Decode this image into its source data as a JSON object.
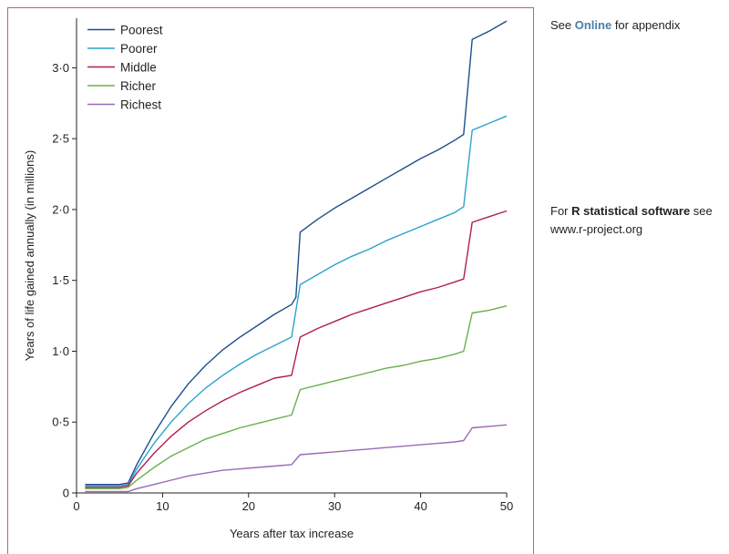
{
  "side_notes": {
    "appendix": {
      "prefix": "See ",
      "link": "Online",
      "suffix": " for appendix"
    },
    "software": {
      "prefix": "For ",
      "bold": "R statistical software",
      "suffix": " see",
      "line2": "www.r-project.org"
    }
  },
  "chart_data": {
    "type": "line",
    "title": "",
    "xlabel": "Years after tax increase",
    "ylabel": "Years of life gained annually (in millions)",
    "xlim": [
      0,
      50
    ],
    "ylim": [
      0,
      3.35
    ],
    "xticks": [
      0,
      10,
      20,
      30,
      40,
      50
    ],
    "xtick_labels": [
      "0",
      "10",
      "20",
      "30",
      "40",
      "50"
    ],
    "yticks": [
      0,
      0.5,
      1.0,
      1.5,
      2.0,
      2.5,
      3.0
    ],
    "ytick_labels": [
      "0",
      "0·5",
      "1·0",
      "1·5",
      "2·0",
      "2·5",
      "3·0"
    ],
    "grid": false,
    "legend_position": "top-left",
    "series": [
      {
        "name": "Poorest",
        "color": "#1d4f8a",
        "points": [
          [
            1,
            0.06
          ],
          [
            5,
            0.06
          ],
          [
            6,
            0.07
          ],
          [
            7,
            0.2
          ],
          [
            9,
            0.42
          ],
          [
            11,
            0.61
          ],
          [
            13,
            0.77
          ],
          [
            15,
            0.9
          ],
          [
            17,
            1.01
          ],
          [
            19,
            1.1
          ],
          [
            21,
            1.18
          ],
          [
            23,
            1.26
          ],
          [
            25,
            1.33
          ],
          [
            25.5,
            1.38
          ],
          [
            26,
            1.84
          ],
          [
            28,
            1.93
          ],
          [
            30,
            2.01
          ],
          [
            32,
            2.08
          ],
          [
            34,
            2.15
          ],
          [
            36,
            2.22
          ],
          [
            38,
            2.29
          ],
          [
            40,
            2.36
          ],
          [
            42,
            2.42
          ],
          [
            44,
            2.49
          ],
          [
            45,
            2.53
          ],
          [
            46,
            3.2
          ],
          [
            48,
            3.26
          ],
          [
            50,
            3.33
          ]
        ]
      },
      {
        "name": "Poorer",
        "color": "#2ba3cc",
        "points": [
          [
            1,
            0.05
          ],
          [
            5,
            0.05
          ],
          [
            6,
            0.06
          ],
          [
            7,
            0.17
          ],
          [
            9,
            0.35
          ],
          [
            11,
            0.5
          ],
          [
            13,
            0.63
          ],
          [
            15,
            0.74
          ],
          [
            17,
            0.83
          ],
          [
            19,
            0.91
          ],
          [
            21,
            0.98
          ],
          [
            23,
            1.04
          ],
          [
            25,
            1.1
          ],
          [
            26,
            1.47
          ],
          [
            28,
            1.54
          ],
          [
            30,
            1.61
          ],
          [
            32,
            1.67
          ],
          [
            34,
            1.72
          ],
          [
            36,
            1.78
          ],
          [
            38,
            1.83
          ],
          [
            40,
            1.88
          ],
          [
            42,
            1.93
          ],
          [
            44,
            1.98
          ],
          [
            45,
            2.02
          ],
          [
            46,
            2.56
          ],
          [
            48,
            2.61
          ],
          [
            50,
            2.66
          ]
        ]
      },
      {
        "name": "Middle",
        "color": "#b01e4e",
        "points": [
          [
            1,
            0.04
          ],
          [
            5,
            0.04
          ],
          [
            6,
            0.05
          ],
          [
            7,
            0.14
          ],
          [
            9,
            0.28
          ],
          [
            11,
            0.4
          ],
          [
            13,
            0.5
          ],
          [
            15,
            0.58
          ],
          [
            17,
            0.65
          ],
          [
            19,
            0.71
          ],
          [
            21,
            0.76
          ],
          [
            23,
            0.81
          ],
          [
            25,
            0.83
          ],
          [
            26,
            1.1
          ],
          [
            28,
            1.16
          ],
          [
            30,
            1.21
          ],
          [
            32,
            1.26
          ],
          [
            34,
            1.3
          ],
          [
            36,
            1.34
          ],
          [
            38,
            1.38
          ],
          [
            40,
            1.42
          ],
          [
            42,
            1.45
          ],
          [
            44,
            1.49
          ],
          [
            45,
            1.51
          ],
          [
            46,
            1.91
          ],
          [
            48,
            1.95
          ],
          [
            50,
            1.99
          ]
        ]
      },
      {
        "name": "Richer",
        "color": "#6ab04c",
        "points": [
          [
            1,
            0.03
          ],
          [
            5,
            0.03
          ],
          [
            6,
            0.04
          ],
          [
            7,
            0.09
          ],
          [
            9,
            0.18
          ],
          [
            11,
            0.26
          ],
          [
            13,
            0.32
          ],
          [
            15,
            0.38
          ],
          [
            17,
            0.42
          ],
          [
            19,
            0.46
          ],
          [
            21,
            0.49
          ],
          [
            23,
            0.52
          ],
          [
            25,
            0.55
          ],
          [
            26,
            0.73
          ],
          [
            28,
            0.76
          ],
          [
            30,
            0.79
          ],
          [
            32,
            0.82
          ],
          [
            34,
            0.85
          ],
          [
            36,
            0.88
          ],
          [
            38,
            0.9
          ],
          [
            40,
            0.93
          ],
          [
            42,
            0.95
          ],
          [
            44,
            0.98
          ],
          [
            45,
            1.0
          ],
          [
            46,
            1.27
          ],
          [
            48,
            1.29
          ],
          [
            50,
            1.32
          ]
        ]
      },
      {
        "name": "Richest",
        "color": "#9a6ab5",
        "points": [
          [
            1,
            0.01
          ],
          [
            5,
            0.01
          ],
          [
            6,
            0.01
          ],
          [
            7,
            0.03
          ],
          [
            9,
            0.06
          ],
          [
            11,
            0.09
          ],
          [
            13,
            0.12
          ],
          [
            15,
            0.14
          ],
          [
            17,
            0.16
          ],
          [
            19,
            0.17
          ],
          [
            21,
            0.18
          ],
          [
            23,
            0.19
          ],
          [
            25,
            0.2
          ],
          [
            26,
            0.27
          ],
          [
            28,
            0.28
          ],
          [
            30,
            0.29
          ],
          [
            32,
            0.3
          ],
          [
            34,
            0.31
          ],
          [
            36,
            0.32
          ],
          [
            38,
            0.33
          ],
          [
            40,
            0.34
          ],
          [
            42,
            0.35
          ],
          [
            44,
            0.36
          ],
          [
            45,
            0.37
          ],
          [
            46,
            0.46
          ],
          [
            48,
            0.47
          ],
          [
            50,
            0.48
          ]
        ]
      }
    ]
  }
}
